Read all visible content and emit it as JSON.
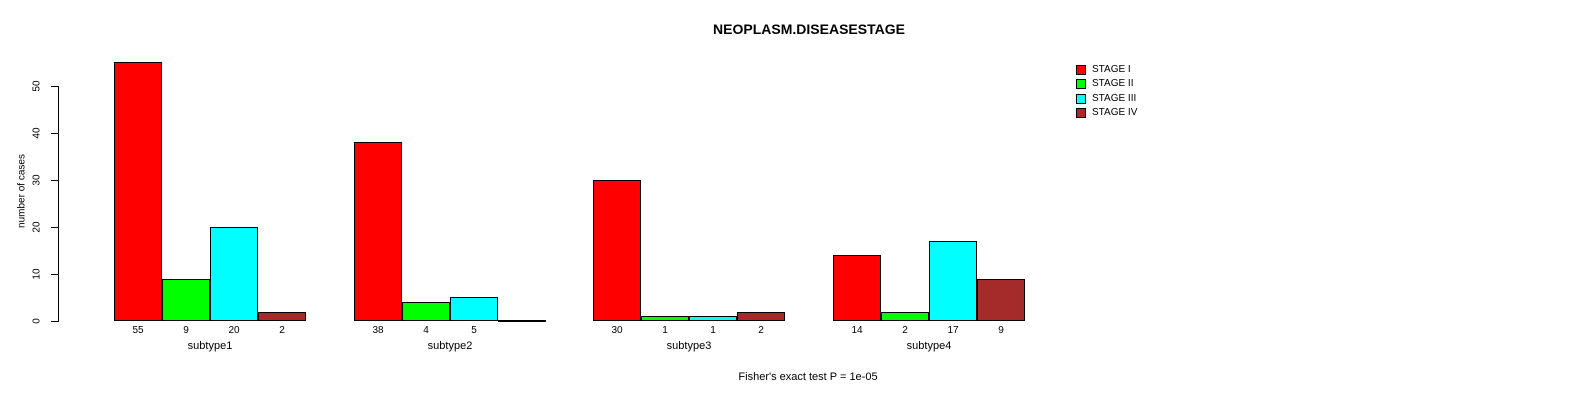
{
  "title": "NEOPLASM.DISEASESTAGE",
  "caption": "Fisher's exact test P = 1e-05",
  "chart_data": {
    "type": "bar",
    "grouped": true,
    "title": "NEOPLASM.DISEASESTAGE",
    "subtitle": "Fisher's exact test P = 1e-05",
    "categories": [
      "subtype1",
      "subtype2",
      "subtype3",
      "subtype4"
    ],
    "series": [
      {
        "name": "STAGE I",
        "color": "#FF0000",
        "values": [
          55,
          38,
          30,
          14
        ]
      },
      {
        "name": "STAGE II",
        "color": "#00FF00",
        "values": [
          9,
          4,
          1,
          2
        ]
      },
      {
        "name": "STAGE III",
        "color": "#00FFFF",
        "values": [
          20,
          5,
          1,
          17
        ]
      },
      {
        "name": "STAGE IV",
        "color": "#A52A2A",
        "values": [
          2,
          0,
          2,
          9
        ]
      }
    ],
    "ylabel": "number of cases",
    "xlabel": "",
    "ylim": [
      0,
      55
    ],
    "yticks": [
      0,
      10,
      20,
      30,
      40,
      50
    ],
    "grid": false,
    "bar_value_labels_shown": true,
    "zero_bar_drawn_as_line": true,
    "zero_bar_label_hidden": true,
    "legend_position": "top-right",
    "axis_color": "#000000",
    "background_color": "#FFFFFF"
  }
}
